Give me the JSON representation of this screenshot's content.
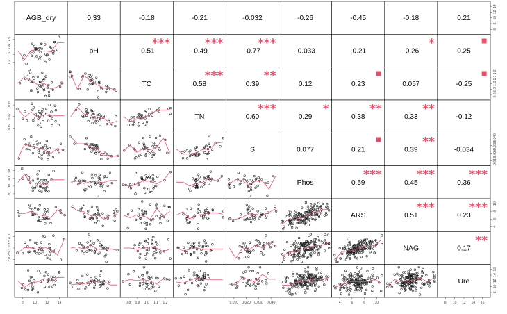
{
  "chart_data": {
    "type": "scatter",
    "variables": [
      "AGB_dry",
      "pH",
      "TC",
      "TN",
      "S",
      "Phos",
      "ARS",
      "NAG",
      "Ure"
    ],
    "correlations": [
      {
        "row": "AGB_dry",
        "col": "pH",
        "r": "0.33",
        "sig": ""
      },
      {
        "row": "AGB_dry",
        "col": "TC",
        "r": "-0.18",
        "sig": ""
      },
      {
        "row": "AGB_dry",
        "col": "TN",
        "r": "-0.21",
        "sig": ""
      },
      {
        "row": "AGB_dry",
        "col": "S",
        "r": "-0.032",
        "sig": ""
      },
      {
        "row": "AGB_dry",
        "col": "Phos",
        "r": "-0.26",
        "sig": ""
      },
      {
        "row": "AGB_dry",
        "col": "ARS",
        "r": "-0.45",
        "sig": ""
      },
      {
        "row": "AGB_dry",
        "col": "NAG",
        "r": "-0.18",
        "sig": ""
      },
      {
        "row": "AGB_dry",
        "col": "Ure",
        "r": "0.21",
        "sig": ""
      },
      {
        "row": "pH",
        "col": "TC",
        "r": "-0.51",
        "sig": "***"
      },
      {
        "row": "pH",
        "col": "TN",
        "r": "-0.49",
        "sig": "***"
      },
      {
        "row": "pH",
        "col": "S",
        "r": "-0.77",
        "sig": "***"
      },
      {
        "row": "pH",
        "col": "Phos",
        "r": "-0.033",
        "sig": ""
      },
      {
        "row": "pH",
        "col": "ARS",
        "r": "-0.21",
        "sig": ""
      },
      {
        "row": "pH",
        "col": "NAG",
        "r": "-0.26",
        "sig": "*"
      },
      {
        "row": "pH",
        "col": "Ure",
        "r": "0.25",
        "sig": "."
      },
      {
        "row": "TC",
        "col": "TN",
        "r": "0.58",
        "sig": "***"
      },
      {
        "row": "TC",
        "col": "S",
        "r": "0.39",
        "sig": "**"
      },
      {
        "row": "TC",
        "col": "Phos",
        "r": "0.12",
        "sig": ""
      },
      {
        "row": "TC",
        "col": "ARS",
        "r": "0.23",
        "sig": "."
      },
      {
        "row": "TC",
        "col": "NAG",
        "r": "0.057",
        "sig": ""
      },
      {
        "row": "TC",
        "col": "Ure",
        "r": "-0.25",
        "sig": "."
      },
      {
        "row": "TN",
        "col": "S",
        "r": "0.60",
        "sig": "***"
      },
      {
        "row": "TN",
        "col": "Phos",
        "r": "0.29",
        "sig": "*"
      },
      {
        "row": "TN",
        "col": "ARS",
        "r": "0.38",
        "sig": "**"
      },
      {
        "row": "TN",
        "col": "NAG",
        "r": "0.33",
        "sig": "**"
      },
      {
        "row": "TN",
        "col": "Ure",
        "r": "-0.12",
        "sig": ""
      },
      {
        "row": "S",
        "col": "Phos",
        "r": "0.077",
        "sig": ""
      },
      {
        "row": "S",
        "col": "ARS",
        "r": "0.21",
        "sig": "."
      },
      {
        "row": "S",
        "col": "NAG",
        "r": "0.39",
        "sig": "**"
      },
      {
        "row": "S",
        "col": "Ure",
        "r": "-0.034",
        "sig": ""
      },
      {
        "row": "Phos",
        "col": "ARS",
        "r": "0.59",
        "sig": "***"
      },
      {
        "row": "Phos",
        "col": "NAG",
        "r": "0.45",
        "sig": "***"
      },
      {
        "row": "Phos",
        "col": "Ure",
        "r": "0.36",
        "sig": "***"
      },
      {
        "row": "ARS",
        "col": "NAG",
        "r": "0.51",
        "sig": "***"
      },
      {
        "row": "ARS",
        "col": "Ure",
        "r": "0.23",
        "sig": "***"
      },
      {
        "row": "NAG",
        "col": "Ure",
        "r": "0.17",
        "sig": "**"
      }
    ],
    "axis_ticks": {
      "bottom": [
        {
          "var": "AGB_dry",
          "labels": [
            "8",
            "10",
            "12",
            "14"
          ]
        },
        {
          "var": "TC",
          "labels": [
            "0.8",
            "0.9",
            "1.0",
            "1.1",
            "1.2"
          ]
        },
        {
          "var": "S",
          "labels": [
            "0.010",
            "0.020",
            "0.030",
            "0.040"
          ]
        },
        {
          "var": "ARS",
          "labels": [
            "4",
            "6",
            "8",
            "10"
          ]
        },
        {
          "var": "Ure",
          "labels": [
            "8",
            "10",
            "12",
            "14",
            "16"
          ]
        }
      ],
      "left": [
        {
          "var": "pH",
          "labels": [
            "7.2",
            "7.3",
            "7.4",
            "7.5"
          ]
        },
        {
          "var": "TN",
          "labels": [
            "0.05",
            "0.07",
            "0.08"
          ]
        },
        {
          "var": "Phos",
          "labels": [
            "20",
            "30",
            "40",
            "50"
          ]
        },
        {
          "var": "NAG",
          "labels": [
            "2.0",
            "2.5",
            "3.0",
            "3.5",
            "4.0"
          ]
        }
      ],
      "right": [
        {
          "var": "AGB_dry",
          "labels": [
            "6",
            "8",
            "10",
            "12",
            "14"
          ]
        },
        {
          "var": "TC",
          "labels": [
            "0.8",
            "0.9",
            "1.0",
            "1.1",
            "1.2"
          ]
        },
        {
          "var": "S",
          "labels": [
            "0.010",
            "0.020",
            "0.030",
            "0.040"
          ]
        },
        {
          "var": "ARS",
          "labels": [
            "4",
            "6",
            "8",
            "10"
          ]
        },
        {
          "var": "Ure",
          "labels": [
            "8",
            "10",
            "12",
            "14",
            "16"
          ]
        }
      ]
    },
    "point_symbol": "open circle",
    "smoother_color": "#e8506a",
    "significance_color": "#e8506a",
    "grid": false
  }
}
